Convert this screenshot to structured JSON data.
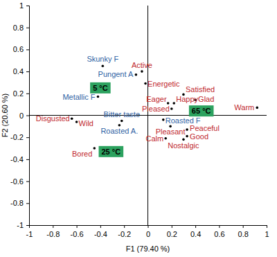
{
  "chart_data": {
    "type": "scatter",
    "xlabel": "F1 (79.40 %)",
    "ylabel": "F2 (20.60 %)",
    "xlim": [
      -1,
      1
    ],
    "ylim": [
      -1,
      1
    ],
    "xticks": [
      -1,
      -0.8,
      -0.6,
      -0.4,
      -0.2,
      0,
      0.2,
      0.4,
      0.6,
      0.8,
      1
    ],
    "yticks": [
      -1,
      -0.8,
      -0.6,
      -0.4,
      -0.2,
      0,
      0.2,
      0.4,
      0.6,
      0.8,
      1
    ],
    "series": [
      {
        "color": "#2e5fa3",
        "marker": "dot",
        "labels": [
          "Skunky F",
          "Pungent A",
          "Metallic F",
          "Bitter taste",
          "Roasted A.",
          "Roasted F"
        ],
        "x": [
          -0.38,
          -0.1,
          -0.42,
          -0.22,
          -0.24,
          0.13
        ],
        "values": [
          0.45,
          0.37,
          0.17,
          -0.05,
          -0.09,
          -0.04
        ]
      },
      {
        "color": "#c0272d",
        "marker": "dot",
        "labels": [
          "Active",
          "Energetic",
          "Disgusted",
          "Wild",
          "Bored",
          "Satisfied",
          "Glad",
          "Eager",
          "Happy",
          "Pleased",
          "Warm",
          "Pleasant",
          "Peaceful",
          "Good",
          "Nostalgic",
          "Calm"
        ],
        "x": [
          -0.05,
          -0.02,
          -0.64,
          -0.6,
          -0.45,
          0.3,
          0.4,
          0.17,
          0.22,
          0.2,
          0.92,
          0.19,
          0.33,
          0.33,
          0.3,
          0.15
        ],
        "values": [
          0.4,
          0.29,
          -0.03,
          -0.06,
          -0.3,
          0.19,
          0.14,
          0.11,
          0.11,
          0.06,
          0.07,
          -0.1,
          -0.13,
          -0.19,
          -0.22,
          -0.21
        ]
      },
      {
        "color": "#2ca25f",
        "marker": "box",
        "labels": [
          "5 °C",
          "25 °C",
          "65 °C"
        ],
        "x": [
          -0.4,
          -0.31,
          0.45
        ],
        "values": [
          0.25,
          -0.33,
          0.04
        ]
      }
    ]
  }
}
